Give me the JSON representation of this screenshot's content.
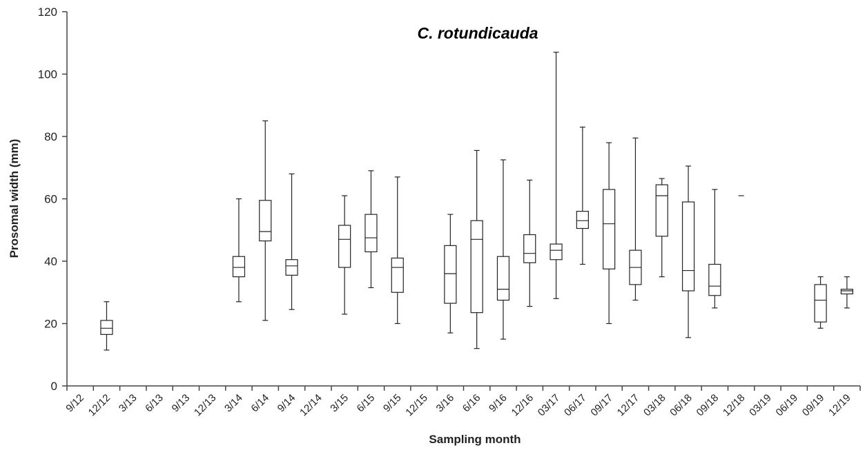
{
  "chart_data": {
    "type": "boxplot",
    "title": "C. rotundicauda",
    "xlabel": "Sampling month",
    "ylabel": "Prosomal width (mm)",
    "ylim": [
      0,
      120
    ],
    "yticks": [
      0,
      20,
      40,
      60,
      80,
      100,
      120
    ],
    "grid": false,
    "legend": "none",
    "categories": [
      "9/12",
      "12/12",
      "3/13",
      "6/13",
      "9/13",
      "12/13",
      "3/14",
      "6/14",
      "9/14",
      "12/14",
      "3/15",
      "6/15",
      "9/15",
      "12/15",
      "3/16",
      "6/16",
      "9/16",
      "12/16",
      "03/17",
      "06/17",
      "09/17",
      "12/17",
      "03/18",
      "06/18",
      "09/18",
      "12/18",
      "03/19",
      "06/19",
      "09/19",
      "12/19"
    ],
    "boxes": [
      null,
      {
        "min": 11.5,
        "q1": 16.5,
        "median": 18.5,
        "q3": 21,
        "max": 27
      },
      null,
      null,
      null,
      null,
      {
        "min": 27,
        "q1": 35,
        "median": 38,
        "q3": 41.5,
        "max": 60
      },
      {
        "min": 21,
        "q1": 46.5,
        "median": 49.5,
        "q3": 59.5,
        "max": 85
      },
      {
        "min": 24.5,
        "q1": 35.5,
        "median": 38.5,
        "q3": 40.5,
        "max": 68
      },
      null,
      {
        "min": 23,
        "q1": 38,
        "median": 47,
        "q3": 51.5,
        "max": 61
      },
      {
        "min": 31.5,
        "q1": 43,
        "median": 47.5,
        "q3": 55,
        "max": 69
      },
      {
        "min": 20,
        "q1": 30,
        "median": 38,
        "q3": 41,
        "max": 67
      },
      null,
      {
        "min": 17,
        "q1": 26.5,
        "median": 36,
        "q3": 45,
        "max": 55
      },
      {
        "min": 12,
        "q1": 23.5,
        "median": 47,
        "q3": 53,
        "max": 75.5
      },
      {
        "min": 15,
        "q1": 27.5,
        "median": 31,
        "q3": 41.5,
        "max": 72.5
      },
      {
        "min": 25.5,
        "q1": 39.5,
        "median": 42.5,
        "q3": 48.5,
        "max": 66
      },
      {
        "min": 28,
        "q1": 40.5,
        "median": 43.5,
        "q3": 45.5,
        "max": 107
      },
      {
        "min": 39,
        "q1": 50.5,
        "median": 53,
        "q3": 56,
        "max": 83
      },
      {
        "min": 20,
        "q1": 37.5,
        "median": 52,
        "q3": 63,
        "max": 78
      },
      {
        "min": 27.5,
        "q1": 32.5,
        "median": 38,
        "q3": 43.5,
        "max": 79.5
      },
      {
        "min": 35,
        "q1": 48,
        "median": 61,
        "q3": 64.5,
        "max": 66.5
      },
      {
        "min": 15.5,
        "q1": 30.5,
        "median": 37,
        "q3": 59,
        "max": 70.5
      },
      {
        "min": 25,
        "q1": 29,
        "median": 32,
        "q3": 39,
        "max": 63
      },
      {
        "single": 61
      },
      null,
      null,
      {
        "min": 18.5,
        "q1": 20.5,
        "median": 27.5,
        "q3": 32.5,
        "max": 35
      },
      {
        "min": 25,
        "q1": 29.5,
        "median": 30.5,
        "q3": 31,
        "max": 35
      }
    ]
  }
}
